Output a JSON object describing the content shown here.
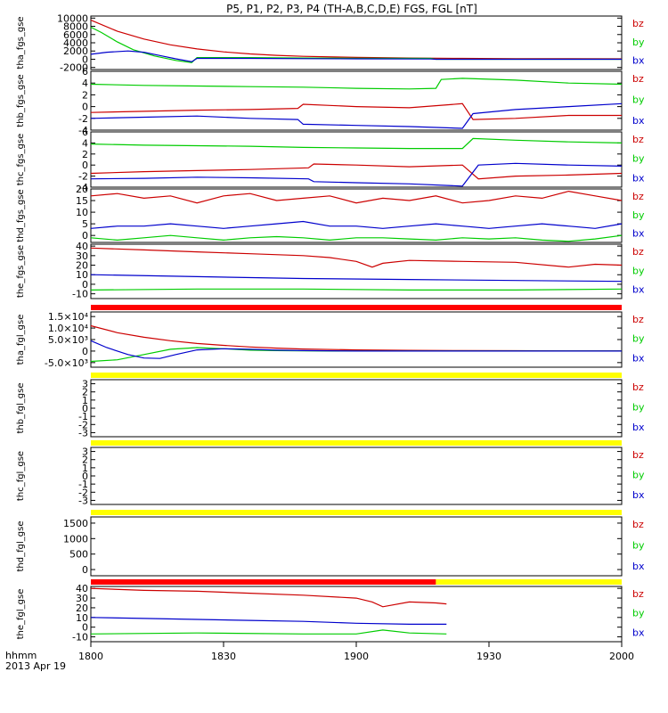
{
  "title": "P5, P1, P2, P3, P4 (TH-A,B,C,D,E) FGS, FGL [nT]",
  "colors": {
    "bz": "#cc0000",
    "by": "#00cc00",
    "bx": "#0000cc",
    "red_bar": "#ff0000",
    "yellow_bar": "#ffff00",
    "axis": "#000000"
  },
  "footer": {
    "line1": "hhmm",
    "line2": "2013 Apr 19"
  },
  "chart_data": {
    "type": "line",
    "x_ticks": [
      "1800",
      "1830",
      "1900",
      "1930",
      "2000"
    ],
    "panels": [
      {
        "id": "tha_fgs_gse",
        "ylabel": "tha_fgs_gse",
        "ylim": [
          -2500,
          10500
        ],
        "ticks": [
          10000,
          8000,
          6000,
          4000,
          2000,
          0,
          -2000
        ],
        "tick_labels": [
          "10000",
          "8000",
          "6000",
          "4000",
          "2000",
          "0",
          "-2000"
        ],
        "legend": [
          "bz",
          "by",
          "bx"
        ],
        "series": [
          {
            "component": "bz",
            "x": [
              0,
              0.05,
              0.1,
              0.15,
              0.2,
              0.25,
              0.3,
              0.35,
              0.4,
              0.5,
              0.6,
              0.7,
              0.8,
              0.9,
              1.0
            ],
            "y": [
              9500,
              6800,
              4900,
              3500,
              2500,
              1800,
              1300,
              950,
              700,
              450,
              300,
              200,
              150,
              120,
              100
            ]
          },
          {
            "component": "by",
            "x": [
              0,
              0.02,
              0.05,
              0.08,
              0.12,
              0.16,
              0.19,
              0.2,
              0.3,
              0.4,
              0.5,
              0.64,
              0.65,
              0.8,
              1.0
            ],
            "y": [
              7800,
              6500,
              4200,
              2300,
              800,
              -300,
              -800,
              400,
              400,
              300,
              250,
              200,
              0,
              0,
              0
            ]
          },
          {
            "component": "bx",
            "x": [
              0,
              0.03,
              0.07,
              0.1,
              0.13,
              0.16,
              0.19,
              0.2,
              0.3,
              0.4,
              0.5,
              0.64,
              0.65,
              0.8,
              1.0
            ],
            "y": [
              1200,
              1700,
              2000,
              1700,
              900,
              100,
              -600,
              200,
              200,
              150,
              100,
              50,
              0,
              0,
              0
            ]
          }
        ]
      },
      {
        "id": "thb_fgs_gse",
        "ylabel": "thb_fgs_gse",
        "ylim": [
          -4,
          6
        ],
        "ticks": [
          6,
          4,
          2,
          0,
          -2,
          -4
        ],
        "tick_labels": [
          "6",
          "4",
          "2",
          "0",
          "-2",
          "-4"
        ],
        "legend": [
          "bz",
          "by",
          "bx"
        ],
        "series": [
          {
            "component": "bz",
            "x": [
              0,
              0.1,
              0.2,
              0.3,
              0.39,
              0.4,
              0.45,
              0.5,
              0.6,
              0.7,
              0.72,
              0.8,
              0.9,
              1.0
            ],
            "y": [
              -1,
              -0.8,
              -0.6,
              -0.5,
              -0.3,
              0.4,
              0.2,
              0,
              -0.2,
              0.5,
              -2.2,
              -2.0,
              -1.5,
              -1.5
            ]
          },
          {
            "component": "by",
            "x": [
              0,
              0.1,
              0.2,
              0.3,
              0.4,
              0.5,
              0.6,
              0.65,
              0.66,
              0.7,
              0.8,
              0.9,
              1.0
            ],
            "y": [
              3.8,
              3.6,
              3.5,
              3.4,
              3.3,
              3.1,
              3.0,
              3.1,
              4.6,
              4.8,
              4.5,
              4.0,
              3.8
            ]
          },
          {
            "component": "bx",
            "x": [
              0,
              0.1,
              0.2,
              0.3,
              0.39,
              0.4,
              0.5,
              0.6,
              0.7,
              0.72,
              0.8,
              0.9,
              1.0
            ],
            "y": [
              -2,
              -1.8,
              -1.6,
              -2.0,
              -2.2,
              -3.0,
              -3.2,
              -3.4,
              -3.7,
              -1.2,
              -0.5,
              0,
              0.5
            ]
          }
        ]
      },
      {
        "id": "thc_fgs_gse",
        "ylabel": "thc_fgs_gse",
        "ylim": [
          -4,
          6
        ],
        "ticks": [
          6,
          4,
          2,
          0,
          -2,
          -4
        ],
        "tick_labels": [
          "6",
          "4",
          "2",
          "0",
          "-2",
          "-4"
        ],
        "legend": [
          "bz",
          "by",
          "bx"
        ],
        "series": [
          {
            "component": "bz",
            "x": [
              0,
              0.1,
              0.2,
              0.3,
              0.41,
              0.42,
              0.5,
              0.6,
              0.7,
              0.73,
              0.8,
              0.9,
              1.0
            ],
            "y": [
              -1.5,
              -1.2,
              -1.0,
              -0.8,
              -0.5,
              0.2,
              0,
              -0.3,
              0,
              -2.5,
              -2.0,
              -1.8,
              -1.5
            ]
          },
          {
            "component": "by",
            "x": [
              0,
              0.1,
              0.2,
              0.3,
              0.4,
              0.5,
              0.6,
              0.7,
              0.72,
              0.8,
              0.9,
              1.0
            ],
            "y": [
              3.8,
              3.6,
              3.5,
              3.4,
              3.2,
              3.1,
              3.0,
              3.0,
              4.8,
              4.5,
              4.2,
              4.0
            ]
          },
          {
            "component": "bx",
            "x": [
              0,
              0.1,
              0.2,
              0.3,
              0.41,
              0.42,
              0.5,
              0.6,
              0.7,
              0.73,
              0.8,
              0.9,
              1.0
            ],
            "y": [
              -2.5,
              -2.4,
              -2.2,
              -2.3,
              -2.5,
              -3.0,
              -3.2,
              -3.4,
              -3.8,
              0,
              0.3,
              0,
              -0.2
            ]
          }
        ]
      },
      {
        "id": "thd_fgs_gse",
        "ylabel": "thd_fgs_gse",
        "ylim": [
          -3,
          20
        ],
        "ticks": [
          20,
          15,
          10,
          5,
          0
        ],
        "tick_labels": [
          "20",
          "15",
          "10",
          "5",
          "0"
        ],
        "legend": [
          "bz",
          "by",
          "bx"
        ],
        "series": [
          {
            "component": "bz",
            "x": [
              0,
              0.05,
              0.1,
              0.15,
              0.2,
              0.25,
              0.3,
              0.35,
              0.4,
              0.45,
              0.5,
              0.55,
              0.6,
              0.65,
              0.7,
              0.75,
              0.8,
              0.85,
              0.9,
              0.95,
              1.0
            ],
            "y": [
              17,
              18,
              16,
              17,
              14,
              17,
              18,
              15,
              16,
              17,
              14,
              16,
              15,
              17,
              14,
              15,
              17,
              16,
              19,
              17,
              15
            ]
          },
          {
            "component": "by",
            "x": [
              0,
              0.05,
              0.1,
              0.15,
              0.2,
              0.25,
              0.3,
              0.35,
              0.4,
              0.45,
              0.5,
              0.55,
              0.6,
              0.65,
              0.7,
              0.75,
              0.8,
              0.85,
              0.9,
              0.95,
              1.0
            ],
            "y": [
              -1,
              -2,
              -1,
              0,
              -1,
              -2,
              -1,
              -0.5,
              -1,
              -2,
              -1,
              -1,
              -1.5,
              -2,
              -1,
              -1.5,
              -1,
              -2,
              -2.5,
              -1.5,
              0
            ]
          },
          {
            "component": "bx",
            "x": [
              0,
              0.05,
              0.1,
              0.15,
              0.2,
              0.25,
              0.3,
              0.35,
              0.4,
              0.45,
              0.5,
              0.55,
              0.6,
              0.65,
              0.7,
              0.75,
              0.8,
              0.85,
              0.9,
              0.95,
              1.0
            ],
            "y": [
              3,
              4,
              4,
              5,
              4,
              3,
              4,
              5,
              6,
              4,
              4,
              3,
              4,
              5,
              4,
              3,
              4,
              5,
              4,
              3,
              5
            ]
          }
        ]
      },
      {
        "id": "the_fgs_gse",
        "ylabel": "the_fgs_gse",
        "ylim": [
          -15,
          42
        ],
        "ticks": [
          40,
          30,
          20,
          10,
          0,
          -10
        ],
        "tick_labels": [
          "40",
          "30",
          "20",
          "10",
          "0",
          "-10"
        ],
        "legend": [
          "bz",
          "by",
          "bx"
        ],
        "series": [
          {
            "component": "bz",
            "x": [
              0,
              0.1,
              0.2,
              0.3,
              0.4,
              0.45,
              0.5,
              0.53,
              0.55,
              0.6,
              0.7,
              0.8,
              0.9,
              0.95,
              1.0
            ],
            "y": [
              38,
              36,
              34,
              32,
              30,
              28,
              24,
              18,
              22,
              25,
              24,
              23,
              18,
              21,
              20
            ]
          },
          {
            "component": "by",
            "x": [
              0,
              0.2,
              0.4,
              0.6,
              0.8,
              1.0
            ],
            "y": [
              -6,
              -5,
              -5,
              -6,
              -6,
              -5
            ]
          },
          {
            "component": "bx",
            "x": [
              0,
              0.2,
              0.4,
              0.6,
              0.8,
              1.0
            ],
            "y": [
              10,
              8,
              6,
              5,
              4,
              3
            ]
          }
        ]
      },
      {
        "id": "tha_fgl_gse",
        "ylabel": "tha_fgl_gse",
        "ylim": [
          -7000,
          17000
        ],
        "ticks": [
          15000,
          10000,
          5000,
          0,
          -5000
        ],
        "tick_labels": [
          "1.5×10⁴",
          "1.0×10⁴",
          "5.0×10³",
          "0",
          "-5.0×10³"
        ],
        "legend": [
          "bz",
          "by",
          "bx"
        ],
        "series": [
          {
            "component": "bz",
            "x": [
              0,
              0.05,
              0.1,
              0.15,
              0.2,
              0.25,
              0.3,
              0.35,
              0.4,
              0.5,
              0.6,
              0.7,
              0.8,
              0.9,
              1.0
            ],
            "y": [
              11000,
              8000,
              6000,
              4500,
              3300,
              2500,
              1800,
              1300,
              900,
              500,
              300,
              200,
              150,
              100,
              100
            ]
          },
          {
            "component": "by",
            "x": [
              0,
              0.05,
              0.1,
              0.15,
              0.2,
              0.25,
              0.3,
              0.35,
              0.4,
              0.5,
              0.6,
              0.7,
              0.8,
              1.0
            ],
            "y": [
              -4500,
              -3800,
              -1500,
              800,
              1500,
              1000,
              400,
              200,
              100,
              0,
              0,
              0,
              0,
              0
            ]
          },
          {
            "component": "bx",
            "x": [
              0,
              0.03,
              0.07,
              0.1,
              0.13,
              0.16,
              0.2,
              0.25,
              0.3,
              0.35,
              0.4,
              0.5,
              0.6,
              0.8,
              1.0
            ],
            "y": [
              4500,
              1500,
              -1500,
              -3000,
              -3200,
              -1500,
              500,
              1000,
              800,
              400,
              200,
              0,
              0,
              0,
              0
            ]
          }
        ]
      },
      {
        "id": "thb_fgl_gse",
        "ylabel": "thb_fgl_gse",
        "ylim": [
          -3.5,
          3.5
        ],
        "ticks": [
          3,
          2,
          1,
          0,
          -1,
          -2,
          -3
        ],
        "tick_labels": [
          "3",
          "2",
          "1",
          "0",
          "-1",
          "-2",
          "-3"
        ],
        "legend": [
          "bz",
          "by",
          "bx"
        ],
        "series": []
      },
      {
        "id": "thc_fgl_gse",
        "ylabel": "thc_fgl_gse",
        "ylim": [
          -3.5,
          3.5
        ],
        "ticks": [
          3,
          2,
          1,
          0,
          -1,
          -2,
          -3
        ],
        "tick_labels": [
          "3",
          "2",
          "1",
          "0",
          "-1",
          "-2",
          "-3"
        ],
        "legend": [
          "bz",
          "by",
          "bx"
        ],
        "series": []
      },
      {
        "id": "thd_fgl_gse",
        "ylabel": "thd_fgl_gse",
        "ylim": [
          -200,
          1700
        ],
        "ticks": [
          1500,
          1000,
          500,
          0
        ],
        "tick_labels": [
          "1500",
          "1000",
          "500",
          "0"
        ],
        "legend": [
          "bz",
          "by",
          "bx"
        ],
        "series": []
      },
      {
        "id": "the_fgl_gse",
        "ylabel": "the_fgl_gse",
        "ylim": [
          -15,
          42
        ],
        "ticks": [
          40,
          30,
          20,
          10,
          0,
          -10
        ],
        "tick_labels": [
          "40",
          "30",
          "20",
          "10",
          "0",
          "-10"
        ],
        "legend": [
          "bz",
          "by",
          "bx"
        ],
        "series": [
          {
            "component": "bz",
            "x": [
              0,
              0.1,
              0.2,
              0.3,
              0.4,
              0.5,
              0.53,
              0.55,
              0.6,
              0.65,
              0.67
            ],
            "y": [
              40,
              38,
              37,
              35,
              33,
              30,
              26,
              21,
              26,
              25,
              24
            ]
          },
          {
            "component": "by",
            "x": [
              0,
              0.2,
              0.4,
              0.5,
              0.55,
              0.6,
              0.67
            ],
            "y": [
              -7,
              -6,
              -7,
              -7,
              -3,
              -6,
              -7
            ]
          },
          {
            "component": "bx",
            "x": [
              0,
              0.1,
              0.2,
              0.3,
              0.4,
              0.5,
              0.6,
              0.67
            ],
            "y": [
              10,
              9,
              8,
              7,
              6,
              4,
              3,
              3
            ]
          }
        ]
      }
    ]
  }
}
